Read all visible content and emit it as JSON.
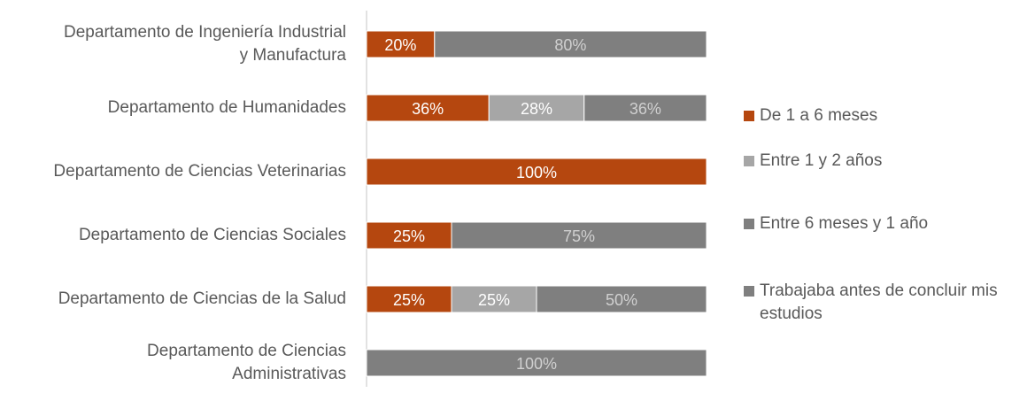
{
  "chart_data": {
    "type": "bar",
    "orientation": "horizontal",
    "stacked": "percent",
    "categories": [
      "Departamento de Ingeniería Industrial y Manufactura",
      "Departamento de Humanidades",
      "Departamento de Ciencias Veterinarias",
      "Departamento de Ciencias Sociales",
      "Departamento de Ciencias de la Salud",
      "Departamento de Ciencias Administrativas"
    ],
    "category_lines": [
      [
        "Departamento de Ingeniería Industrial",
        "y Manufactura"
      ],
      [
        "Departamento de Humanidades"
      ],
      [
        "Departamento de Ciencias Veterinarias"
      ],
      [
        "Departamento de Ciencias Sociales"
      ],
      [
        "Departamento de Ciencias de la Salud"
      ],
      [
        "Departamento de Ciencias",
        "Administrativas"
      ]
    ],
    "series": [
      {
        "name": "De 1 a 6 meses",
        "color": "#b5470f",
        "values": [
          20,
          36,
          100,
          25,
          25,
          0
        ]
      },
      {
        "name": "Entre 1 y 2 años",
        "color": "#a6a6a6",
        "values": [
          0,
          28,
          0,
          0,
          25,
          0
        ]
      },
      {
        "name": "Entre 6 meses y 1 año",
        "color": "#7f7f7f",
        "values": [
          0,
          0,
          0,
          0,
          0,
          0
        ]
      },
      {
        "name": "Trabajaba antes de concluir mis estudios",
        "color": "#7f7f7f",
        "values": [
          80,
          36,
          0,
          75,
          50,
          100
        ]
      }
    ],
    "legend_lines": [
      [
        "De 1 a 6 meses"
      ],
      [
        "Entre 1 y 2 años"
      ],
      [
        "Entre 6 meses y 1 año"
      ],
      [
        "Trabajaba antes de concluir mis",
        "estudios"
      ]
    ],
    "data_labels": "percent",
    "legend_position": "right",
    "xlim": [
      0,
      100
    ],
    "grid": false
  }
}
